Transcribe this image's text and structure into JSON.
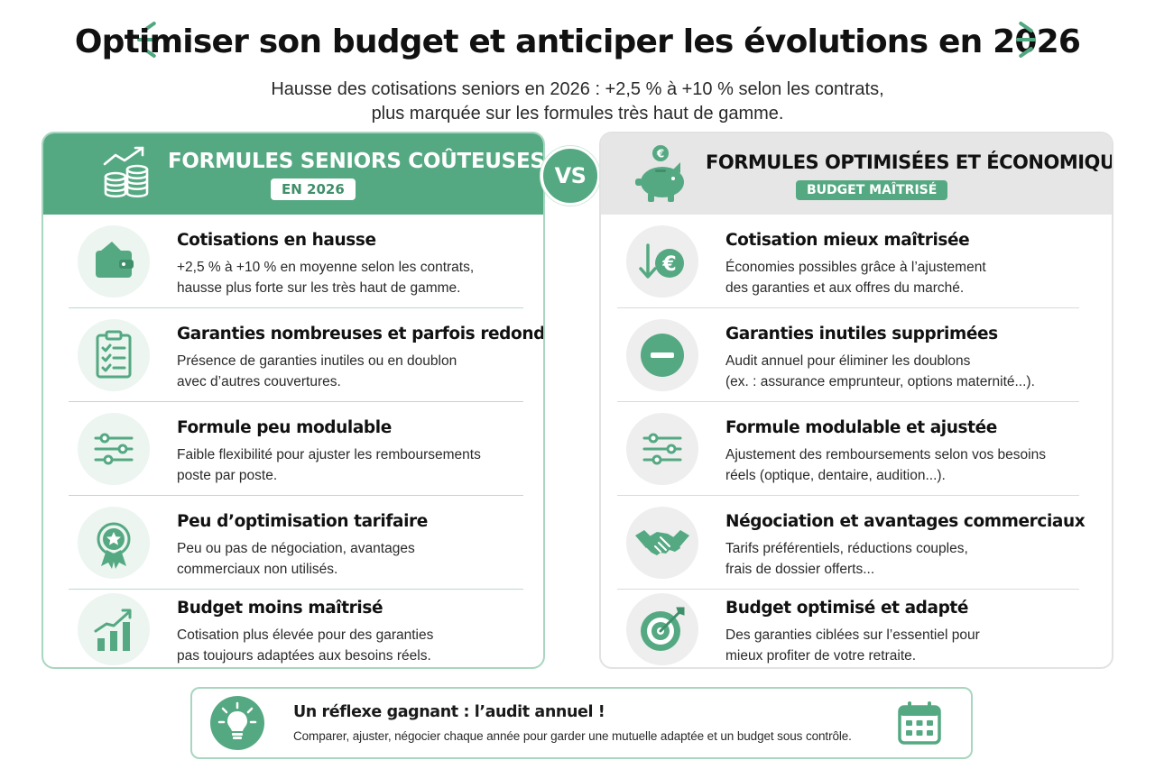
{
  "header": {
    "title": "Optimiser son budget et anticiper les évolutions en 2026",
    "subtitle_line1": "Hausse des cotisations seniors en 2026 : +2,5 % à +10 % selon les contrats,",
    "subtitle_line2": "plus marquée sur les formules très haut de gamme."
  },
  "vs_label": "VS",
  "left_panel": {
    "title": "FORMULES SENIORS COÛTEUSES",
    "badge": "EN 2026",
    "header_icon": "coins-growth-icon",
    "items": [
      {
        "icon": "wallet-icon",
        "title": "Cotisations en hausse",
        "line1": "+2,5 % à +10 % en moyenne selon les contrats,",
        "line2": "hausse plus forte sur les très haut de gamme."
      },
      {
        "icon": "checklist-icon",
        "title": "Garanties nombreuses et parfois redondantes",
        "line1": "Présence de garanties inutiles ou en doublon",
        "line2": "avec d’autres couvertures."
      },
      {
        "icon": "sliders-icon",
        "title": "Formule peu modulable",
        "line1": "Faible flexibilité pour ajuster les remboursements",
        "line2": "poste par poste."
      },
      {
        "icon": "award-ribbon-icon",
        "title": "Peu d’optimisation tarifaire",
        "line1": "Peu ou pas de négociation, avantages",
        "line2": "commerciaux non utilisés."
      },
      {
        "icon": "rising-bars-icon",
        "title": "Budget moins maîtrisé",
        "line1": "Cotisation plus élevée pour des garanties",
        "line2": "pas toujours adaptées aux besoins réels."
      }
    ]
  },
  "right_panel": {
    "title": "FORMULES OPTIMISÉES ET ÉCONOMIQUES",
    "badge": "BUDGET MAÎTRISÉ",
    "header_icon": "piggy-bank-icon",
    "items": [
      {
        "icon": "euro-down-icon",
        "title": "Cotisation mieux maîtrisée",
        "line1": "Économies possibles grâce à l’ajustement",
        "line2": "des garanties et aux offres du marché."
      },
      {
        "icon": "minus-circle-icon",
        "title": "Garanties inutiles supprimées",
        "line1": "Audit annuel pour éliminer les doublons",
        "line2": "(ex. : assurance emprunteur, options maternité...)."
      },
      {
        "icon": "sliders-icon",
        "title": "Formule modulable et ajustée",
        "line1": "Ajustement des remboursements selon vos besoins",
        "line2": "réels (optique, dentaire, audition...)."
      },
      {
        "icon": "handshake-icon",
        "title": "Négociation et avantages commerciaux",
        "line1": "Tarifs préférentiels, réductions couples,",
        "line2": "frais de dossier offerts..."
      },
      {
        "icon": "target-icon",
        "title": "Budget optimisé et adapté",
        "line1": "Des garanties ciblées sur l’essentiel pour",
        "line2": "mieux profiter de votre retraite."
      }
    ]
  },
  "footer": {
    "title": "Un réflexe gagnant : l’audit annuel !",
    "text": "Comparer, ajuster, négocier chaque année pour garder une mutuelle adaptée et un budget sous contrôle.",
    "left_icon": "lightbulb-icon",
    "right_icon": "calendar-icon"
  },
  "colors": {
    "accent_green": "#55a982",
    "light_green": "#ecf5f0",
    "grey_header": "#e6e6e6"
  }
}
